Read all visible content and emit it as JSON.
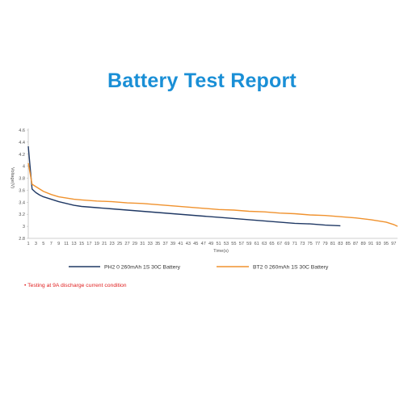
{
  "title": "Battery Test Report",
  "note": "• Testing at 9A discharge current condition",
  "colors": {
    "title": "#1a8fd6",
    "series1": "#1f3864",
    "series2": "#f0922e",
    "note": "#e02020"
  },
  "chart_data": {
    "type": "line",
    "xlabel": "Time(s)",
    "ylabel": "Voltage(V)",
    "xlim": [
      1,
      98
    ],
    "ylim": [
      2.8,
      4.6
    ],
    "yticks": [
      "2.8",
      "3",
      "3.2",
      "3.4",
      "3.6",
      "3.8",
      "4",
      "4.2",
      "4.4",
      "4.6"
    ],
    "xticks": [
      "1",
      "3",
      "5",
      "7",
      "9",
      "11",
      "13",
      "15",
      "17",
      "19",
      "21",
      "23",
      "25",
      "27",
      "29",
      "31",
      "33",
      "35",
      "37",
      "39",
      "41",
      "43",
      "45",
      "47",
      "49",
      "51",
      "53",
      "55",
      "57",
      "59",
      "61",
      "63",
      "65",
      "67",
      "69",
      "71",
      "73",
      "75",
      "77",
      "79",
      "81",
      "83",
      "85",
      "87",
      "89",
      "91",
      "93",
      "95",
      "97"
    ],
    "grid": false,
    "legend_position": "bottom",
    "series": [
      {
        "name": "PH2 0 260mAh 1S 30C Battery",
        "x": [
          1,
          2,
          3,
          4,
          5,
          7,
          9,
          11,
          13,
          15,
          19,
          23,
          27,
          31,
          35,
          39,
          43,
          47,
          51,
          55,
          59,
          63,
          67,
          71,
          75,
          79,
          83
        ],
        "y": [
          4.33,
          3.62,
          3.56,
          3.52,
          3.49,
          3.45,
          3.41,
          3.38,
          3.35,
          3.33,
          3.31,
          3.29,
          3.27,
          3.25,
          3.23,
          3.21,
          3.19,
          3.17,
          3.15,
          3.13,
          3.11,
          3.09,
          3.07,
          3.05,
          3.04,
          3.02,
          3.01
        ]
      },
      {
        "name": "BT2 0 260mAh 1S 30C Battery",
        "x": [
          1,
          2,
          3,
          5,
          7,
          9,
          11,
          13,
          15,
          19,
          23,
          27,
          31,
          35,
          39,
          43,
          47,
          51,
          55,
          59,
          63,
          67,
          71,
          75,
          79,
          83,
          87,
          91,
          93,
          95,
          97,
          98
        ],
        "y": [
          4.05,
          3.7,
          3.66,
          3.58,
          3.53,
          3.49,
          3.47,
          3.45,
          3.44,
          3.42,
          3.41,
          3.39,
          3.38,
          3.36,
          3.34,
          3.32,
          3.3,
          3.28,
          3.27,
          3.25,
          3.24,
          3.22,
          3.21,
          3.19,
          3.18,
          3.16,
          3.14,
          3.11,
          3.09,
          3.07,
          3.03,
          3.0
        ]
      }
    ]
  }
}
